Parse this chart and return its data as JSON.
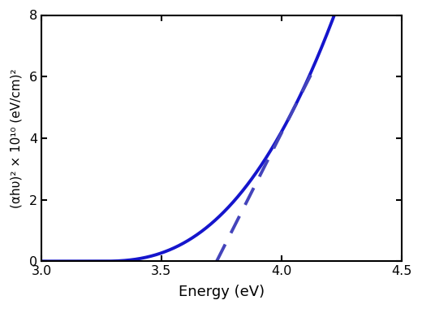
{
  "xlim": [
    3.0,
    4.5
  ],
  "ylim": [
    0,
    8
  ],
  "xticks": [
    3.0,
    3.5,
    4.0,
    4.5
  ],
  "yticks": [
    0,
    2,
    4,
    6,
    8
  ],
  "xlabel": "Energy (eV)",
  "ylabel": "(αhυ)² × 10¹⁰ (eV/cm)²",
  "curve_color": "#1515cc",
  "dashed_color": "#4444bb",
  "background_color": "#ffffff",
  "line_width": 2.8,
  "x_thresh": 3.25,
  "power": 2.5,
  "x_curve_end": 4.22,
  "dash_x_start": 3.875,
  "dash_x_end": 4.13,
  "tangent_x": 4.05
}
